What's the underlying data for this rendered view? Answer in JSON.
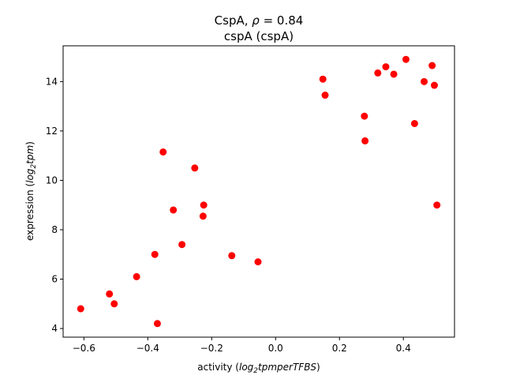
{
  "chart_data": {
    "type": "scatter",
    "title_line1_text": "CspA, ",
    "title_line1_rho": "ρ",
    "title_line1_value": " = 0.84",
    "title_line2": "cspA (cspA)",
    "xlabel_prefix": "activity (",
    "xlabel_math": "log",
    "xlabel_sub": "2",
    "xlabel_math2": "tpmperTFBS",
    "xlabel_suffix": ")",
    "ylabel_prefix": "expression (",
    "ylabel_math": "log",
    "ylabel_sub": "2",
    "ylabel_math2": "tpm",
    "ylabel_suffix": ")",
    "xlim": [
      -0.665,
      0.56
    ],
    "ylim": [
      3.65,
      15.45
    ],
    "xticks": [
      -0.6,
      -0.4,
      -0.2,
      0.0,
      0.2,
      0.4
    ],
    "xtick_labels": [
      "−0.6",
      "−0.4",
      "−0.2",
      "0.0",
      "0.2",
      "0.4"
    ],
    "yticks": [
      4,
      6,
      8,
      10,
      12,
      14
    ],
    "ytick_labels": [
      "4",
      "6",
      "8",
      "10",
      "12",
      "14"
    ],
    "grid": false,
    "color": "#ff0000",
    "points": [
      {
        "x": -0.61,
        "y": 4.8
      },
      {
        "x": -0.52,
        "y": 5.4
      },
      {
        "x": -0.505,
        "y": 5.0
      },
      {
        "x": -0.435,
        "y": 6.1
      },
      {
        "x": -0.37,
        "y": 4.2
      },
      {
        "x": -0.378,
        "y": 7.0
      },
      {
        "x": -0.352,
        "y": 11.15
      },
      {
        "x": -0.32,
        "y": 8.8
      },
      {
        "x": -0.293,
        "y": 7.4
      },
      {
        "x": -0.253,
        "y": 10.5
      },
      {
        "x": -0.225,
        "y": 9.0
      },
      {
        "x": -0.227,
        "y": 8.55
      },
      {
        "x": -0.137,
        "y": 6.95
      },
      {
        "x": -0.055,
        "y": 6.7
      },
      {
        "x": 0.148,
        "y": 14.1
      },
      {
        "x": 0.155,
        "y": 13.45
      },
      {
        "x": 0.278,
        "y": 12.6
      },
      {
        "x": 0.28,
        "y": 11.6
      },
      {
        "x": 0.32,
        "y": 14.35
      },
      {
        "x": 0.345,
        "y": 14.6
      },
      {
        "x": 0.37,
        "y": 14.3
      },
      {
        "x": 0.408,
        "y": 14.9
      },
      {
        "x": 0.435,
        "y": 12.3
      },
      {
        "x": 0.465,
        "y": 14.0
      },
      {
        "x": 0.49,
        "y": 14.65
      },
      {
        "x": 0.497,
        "y": 13.85
      },
      {
        "x": 0.505,
        "y": 9.0
      }
    ]
  }
}
